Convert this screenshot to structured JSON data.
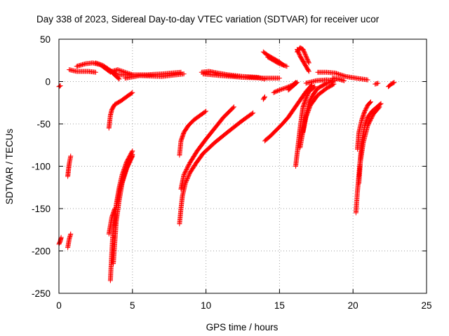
{
  "chart_data": {
    "type": "scatter",
    "title": "Day 338 of 2023, Sidereal Day-to-day VTEC variation (SDTVAR) for receiver ucor",
    "xlabel": "GPS time / hours",
    "ylabel": "SDTVAR / TECUs",
    "xlim": [
      0,
      25
    ],
    "ylim": [
      -250,
      50
    ],
    "xticks": [
      0,
      5,
      10,
      15,
      20,
      25
    ],
    "xtick_labels": [
      "0",
      "5",
      "10",
      "15",
      "20",
      "25"
    ],
    "yticks": [
      50,
      0,
      -50,
      -100,
      -150,
      -200,
      -250
    ],
    "ytick_labels": [
      "50",
      "0",
      "-50",
      "-100",
      "-150",
      "-200",
      "-250"
    ],
    "grid": true,
    "marker": "+",
    "series": [
      {
        "name": "SDTVAR",
        "color": "#ff0000",
        "segments": [
          [
            [
              0.0,
              -6
            ],
            [
              0.1,
              -5
            ]
          ],
          [
            [
              0.0,
              -192
            ],
            [
              0.1,
              -188
            ],
            [
              0.15,
              -184
            ]
          ],
          [
            [
              0.6,
              -112
            ],
            [
              0.65,
              -104
            ],
            [
              0.7,
              -97
            ],
            [
              0.8,
              -88
            ]
          ],
          [
            [
              0.6,
              -196
            ],
            [
              0.65,
              -191
            ],
            [
              0.7,
              -186
            ],
            [
              0.8,
              -180
            ]
          ],
          [
            [
              0.7,
              14
            ],
            [
              1.2,
              12
            ],
            [
              2.0,
              12
            ],
            [
              2.5,
              11
            ]
          ],
          [
            [
              1.2,
              18
            ],
            [
              1.8,
              21
            ],
            [
              2.3,
              22
            ],
            [
              2.8,
              20
            ],
            [
              3.2,
              15
            ],
            [
              3.5,
              11
            ]
          ],
          [
            [
              2.5,
              22
            ],
            [
              3.0,
              19
            ],
            [
              3.5,
              13
            ],
            [
              3.9,
              9
            ]
          ],
          [
            [
              3.2,
              16
            ],
            [
              3.6,
              11
            ],
            [
              3.9,
              6
            ],
            [
              4.1,
              3
            ]
          ],
          [
            [
              3.6,
              12
            ],
            [
              4.0,
              14
            ],
            [
              4.5,
              11
            ],
            [
              5.0,
              8
            ]
          ],
          [
            [
              4.0,
              8
            ],
            [
              5.0,
              8
            ],
            [
              6.0,
              8
            ],
            [
              7.0,
              9
            ],
            [
              8.3,
              11
            ]
          ],
          [
            [
              4.5,
              4
            ],
            [
              5.5,
              7
            ],
            [
              7.0,
              6
            ],
            [
              8.5,
              9
            ]
          ],
          [
            [
              3.4,
              -55
            ],
            [
              3.5,
              -40
            ],
            [
              3.6,
              -33
            ],
            [
              3.8,
              -27
            ],
            [
              4.2,
              -23
            ],
            [
              4.6,
              -18
            ],
            [
              5.0,
              -13
            ]
          ],
          [
            [
              3.4,
              -180
            ],
            [
              3.5,
              -170
            ],
            [
              3.6,
              -160
            ],
            [
              3.8,
              -150
            ]
          ],
          [
            [
              3.5,
              -235
            ],
            [
              3.6,
              -200
            ],
            [
              3.7,
              -170
            ],
            [
              3.9,
              -145
            ],
            [
              4.1,
              -125
            ],
            [
              4.3,
              -110
            ],
            [
              4.6,
              -95
            ],
            [
              5.0,
              -82
            ]
          ],
          [
            [
              3.7,
              -215
            ],
            [
              3.8,
              -190
            ],
            [
              3.9,
              -165
            ],
            [
              4.1,
              -140
            ],
            [
              4.3,
              -120
            ],
            [
              4.6,
              -103
            ],
            [
              5.0,
              -88
            ]
          ],
          [
            [
              3.8,
              -170
            ],
            [
              3.9,
              -150
            ],
            [
              4.1,
              -130
            ],
            [
              4.4,
              -112
            ],
            [
              4.7,
              -98
            ],
            [
              5.0,
              -86
            ]
          ],
          [
            [
              8.2,
              -87
            ],
            [
              8.3,
              -70
            ],
            [
              8.5,
              -60
            ],
            [
              8.8,
              -52
            ],
            [
              9.2,
              -45
            ],
            [
              10.0,
              -35
            ]
          ],
          [
            [
              8.2,
              -168
            ],
            [
              8.3,
              -150
            ],
            [
              8.4,
              -135
            ],
            [
              8.6,
              -120
            ],
            [
              8.9,
              -108
            ],
            [
              9.3,
              -97
            ],
            [
              9.8,
              -85
            ],
            [
              10.6,
              -72
            ],
            [
              11.6,
              -58
            ],
            [
              12.4,
              -47
            ],
            [
              13.2,
              -37
            ]
          ],
          [
            [
              8.3,
              -127
            ],
            [
              8.5,
              -110
            ],
            [
              8.9,
              -96
            ],
            [
              9.4,
              -82
            ],
            [
              10.0,
              -68
            ],
            [
              10.6,
              -55
            ],
            [
              11.2,
              -42
            ],
            [
              11.9,
              -30
            ]
          ],
          [
            [
              9.7,
              11
            ],
            [
              10.2,
              12
            ],
            [
              10.8,
              10
            ],
            [
              11.5,
              8
            ],
            [
              12.5,
              6
            ],
            [
              13.5,
              5
            ],
            [
              14.0,
              3
            ]
          ],
          [
            [
              9.8,
              9
            ],
            [
              11.0,
              7
            ],
            [
              12.5,
              5
            ],
            [
              14.0,
              4
            ],
            [
              15.0,
              4
            ]
          ],
          [
            [
              13.9,
              35
            ],
            [
              14.2,
              31
            ],
            [
              14.6,
              27
            ],
            [
              15.0,
              23
            ],
            [
              15.3,
              19
            ]
          ],
          [
            [
              14.2,
              29
            ],
            [
              14.6,
              25
            ],
            [
              15.0,
              21
            ],
            [
              15.5,
              18
            ]
          ],
          [
            [
              13.9,
              -21
            ],
            [
              14.0,
              -18
            ]
          ],
          [
            [
              14.6,
              -13
            ],
            [
              15.0,
              -10
            ],
            [
              15.5,
              -7
            ],
            [
              15.9,
              -4
            ],
            [
              16.1,
              -1
            ]
          ],
          [
            [
              15.6,
              -10
            ],
            [
              15.8,
              -7
            ],
            [
              16.0,
              -4
            ],
            [
              16.2,
              -1
            ]
          ],
          [
            [
              14.0,
              -70
            ],
            [
              14.4,
              -64
            ],
            [
              14.8,
              -57
            ],
            [
              15.2,
              -50
            ],
            [
              15.6,
              -42
            ],
            [
              16.0,
              -32
            ],
            [
              16.4,
              -22
            ],
            [
              16.8,
              -12
            ],
            [
              17.2,
              -4
            ]
          ],
          [
            [
              16.2,
              35
            ],
            [
              16.4,
              40
            ],
            [
              16.6,
              38
            ],
            [
              16.8,
              30
            ],
            [
              17.0,
              22
            ]
          ],
          [
            [
              16.2,
              38
            ],
            [
              16.4,
              30
            ],
            [
              16.6,
              24
            ],
            [
              16.8,
              18
            ],
            [
              17.0,
              12
            ]
          ],
          [
            [
              16.1,
              -100
            ],
            [
              16.2,
              -85
            ],
            [
              16.3,
              -70
            ],
            [
              16.4,
              -55
            ],
            [
              16.5,
              -42
            ],
            [
              16.6,
              -30
            ],
            [
              16.8,
              -20
            ],
            [
              17.0,
              -12
            ],
            [
              17.4,
              -6
            ]
          ],
          [
            [
              16.4,
              -78
            ],
            [
              16.6,
              -58
            ],
            [
              16.8,
              -40
            ],
            [
              17.0,
              -25
            ],
            [
              17.3,
              -15
            ],
            [
              17.6,
              -8
            ],
            [
              18.2,
              -2
            ],
            [
              18.6,
              0
            ]
          ],
          [
            [
              16.6,
              -60
            ],
            [
              16.8,
              -42
            ],
            [
              17.1,
              -28
            ],
            [
              17.6,
              -16
            ],
            [
              18.2,
              -8
            ],
            [
              18.7,
              -3
            ]
          ],
          [
            [
              16.8,
              -2
            ],
            [
              17.5,
              1
            ],
            [
              18.2,
              2
            ],
            [
              18.8,
              1
            ]
          ],
          [
            [
              17.6,
              11
            ],
            [
              18.2,
              11
            ],
            [
              18.8,
              10
            ],
            [
              19.5,
              6
            ],
            [
              20.2,
              4
            ],
            [
              21.0,
              2
            ]
          ],
          [
            [
              18.6,
              4
            ],
            [
              19.0,
              3
            ],
            [
              19.4,
              1
            ]
          ],
          [
            [
              21.5,
              -3
            ],
            [
              21.7,
              -2
            ]
          ],
          [
            [
              22.4,
              -6
            ],
            [
              22.6,
              -3
            ],
            [
              22.8,
              -1
            ]
          ],
          [
            [
              20.2,
              -155
            ],
            [
              20.3,
              -130
            ],
            [
              20.4,
              -110
            ],
            [
              20.5,
              -90
            ],
            [
              20.6,
              -70
            ],
            [
              20.8,
              -52
            ],
            [
              21.0,
              -42
            ],
            [
              21.3,
              -35
            ],
            [
              21.7,
              -29
            ],
            [
              21.9,
              -26
            ]
          ],
          [
            [
              20.3,
              -80
            ],
            [
              20.4,
              -60
            ],
            [
              20.6,
              -45
            ],
            [
              20.8,
              -35
            ],
            [
              21.0,
              -28
            ],
            [
              21.2,
              -24
            ]
          ],
          [
            [
              20.4,
              -120
            ],
            [
              20.5,
              -95
            ],
            [
              20.7,
              -72
            ],
            [
              21.0,
              -52
            ],
            [
              21.4,
              -38
            ],
            [
              21.8,
              -30
            ]
          ]
        ]
      }
    ]
  }
}
